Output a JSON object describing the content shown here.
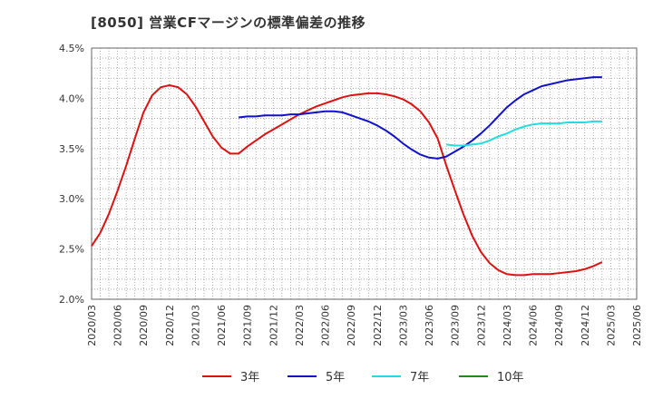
{
  "chart_data": {
    "type": "line",
    "title": "[8050]  営業CFマージンの標準偏差の推移",
    "xlabel": "",
    "ylabel": "",
    "ylim": [
      2.0,
      4.5
    ],
    "y_ticks": [
      "2.0%",
      "2.5%",
      "3.0%",
      "3.5%",
      "4.0%",
      "4.5%"
    ],
    "x_ticks": [
      "2020/03",
      "2020/06",
      "2020/09",
      "2020/12",
      "2021/03",
      "2021/06",
      "2021/09",
      "2021/12",
      "2022/03",
      "2022/06",
      "2022/09",
      "2022/12",
      "2023/03",
      "2023/06",
      "2023/09",
      "2023/12",
      "2024/03",
      "2024/06",
      "2024/09",
      "2024/12",
      "2025/03",
      "2025/06"
    ],
    "grid": true,
    "legend_position": "bottom",
    "series": [
      {
        "name": "3年",
        "color": "#dd1111",
        "points": [
          [
            "2020/03",
            2.53
          ],
          [
            "2020/04",
            2.66
          ],
          [
            "2020/05",
            2.85
          ],
          [
            "2020/06",
            3.08
          ],
          [
            "2020/07",
            3.33
          ],
          [
            "2020/08",
            3.6
          ],
          [
            "2020/09",
            3.86
          ],
          [
            "2020/10",
            4.03
          ],
          [
            "2020/11",
            4.11
          ],
          [
            "2020/12",
            4.13
          ],
          [
            "2021/01",
            4.11
          ],
          [
            "2021/02",
            4.04
          ],
          [
            "2021/03",
            3.92
          ],
          [
            "2021/04",
            3.77
          ],
          [
            "2021/05",
            3.62
          ],
          [
            "2021/06",
            3.51
          ],
          [
            "2021/07",
            3.45
          ],
          [
            "2021/08",
            3.45
          ],
          [
            "2021/09",
            3.52
          ],
          [
            "2021/10",
            3.58
          ],
          [
            "2021/11",
            3.64
          ],
          [
            "2021/12",
            3.69
          ],
          [
            "2022/01",
            3.74
          ],
          [
            "2022/02",
            3.79
          ],
          [
            "2022/03",
            3.84
          ],
          [
            "2022/04",
            3.88
          ],
          [
            "2022/05",
            3.92
          ],
          [
            "2022/06",
            3.95
          ],
          [
            "2022/07",
            3.98
          ],
          [
            "2022/08",
            4.01
          ],
          [
            "2022/09",
            4.03
          ],
          [
            "2022/10",
            4.04
          ],
          [
            "2022/11",
            4.05
          ],
          [
            "2022/12",
            4.05
          ],
          [
            "2023/01",
            4.04
          ],
          [
            "2023/02",
            4.02
          ],
          [
            "2023/03",
            3.99
          ],
          [
            "2023/04",
            3.94
          ],
          [
            "2023/05",
            3.87
          ],
          [
            "2023/06",
            3.76
          ],
          [
            "2023/07",
            3.6
          ],
          [
            "2023/08",
            3.33
          ],
          [
            "2023/09",
            3.08
          ],
          [
            "2023/10",
            2.84
          ],
          [
            "2023/11",
            2.63
          ],
          [
            "2023/12",
            2.47
          ],
          [
            "2024/01",
            2.36
          ],
          [
            "2024/02",
            2.29
          ],
          [
            "2024/03",
            2.25
          ],
          [
            "2024/04",
            2.24
          ],
          [
            "2024/05",
            2.24
          ],
          [
            "2024/06",
            2.25
          ],
          [
            "2024/07",
            2.25
          ],
          [
            "2024/08",
            2.25
          ],
          [
            "2024/09",
            2.26
          ],
          [
            "2024/10",
            2.27
          ],
          [
            "2024/11",
            2.28
          ],
          [
            "2024/12",
            2.3
          ],
          [
            "2025/01",
            2.33
          ],
          [
            "2025/02",
            2.37
          ]
        ]
      },
      {
        "name": "5年",
        "color": "#1111cc",
        "points": [
          [
            "2021/08",
            3.81
          ],
          [
            "2021/09",
            3.82
          ],
          [
            "2021/10",
            3.82
          ],
          [
            "2021/11",
            3.83
          ],
          [
            "2021/12",
            3.83
          ],
          [
            "2022/01",
            3.83
          ],
          [
            "2022/02",
            3.84
          ],
          [
            "2022/03",
            3.84
          ],
          [
            "2022/04",
            3.85
          ],
          [
            "2022/05",
            3.86
          ],
          [
            "2022/06",
            3.87
          ],
          [
            "2022/07",
            3.87
          ],
          [
            "2022/08",
            3.86
          ],
          [
            "2022/09",
            3.83
          ],
          [
            "2022/10",
            3.8
          ],
          [
            "2022/11",
            3.77
          ],
          [
            "2022/12",
            3.73
          ],
          [
            "2023/01",
            3.68
          ],
          [
            "2023/02",
            3.62
          ],
          [
            "2023/03",
            3.55
          ],
          [
            "2023/04",
            3.49
          ],
          [
            "2023/05",
            3.44
          ],
          [
            "2023/06",
            3.41
          ],
          [
            "2023/07",
            3.4
          ],
          [
            "2023/08",
            3.42
          ],
          [
            "2023/09",
            3.47
          ],
          [
            "2023/10",
            3.52
          ],
          [
            "2023/11",
            3.58
          ],
          [
            "2023/12",
            3.65
          ],
          [
            "2024/01",
            3.73
          ],
          [
            "2024/02",
            3.82
          ],
          [
            "2024/03",
            3.91
          ],
          [
            "2024/04",
            3.98
          ],
          [
            "2024/05",
            4.04
          ],
          [
            "2024/06",
            4.08
          ],
          [
            "2024/07",
            4.12
          ],
          [
            "2024/08",
            4.14
          ],
          [
            "2024/09",
            4.16
          ],
          [
            "2024/10",
            4.18
          ],
          [
            "2024/11",
            4.19
          ],
          [
            "2024/12",
            4.2
          ],
          [
            "2025/01",
            4.21
          ],
          [
            "2025/02",
            4.21
          ]
        ]
      },
      {
        "name": "7年",
        "color": "#22dddd",
        "points": [
          [
            "2023/08",
            3.54
          ],
          [
            "2023/09",
            3.53
          ],
          [
            "2023/10",
            3.53
          ],
          [
            "2023/11",
            3.54
          ],
          [
            "2023/12",
            3.55
          ],
          [
            "2024/01",
            3.58
          ],
          [
            "2024/02",
            3.62
          ],
          [
            "2024/03",
            3.65
          ],
          [
            "2024/04",
            3.69
          ],
          [
            "2024/05",
            3.72
          ],
          [
            "2024/06",
            3.74
          ],
          [
            "2024/07",
            3.75
          ],
          [
            "2024/08",
            3.75
          ],
          [
            "2024/09",
            3.75
          ],
          [
            "2024/10",
            3.76
          ],
          [
            "2024/11",
            3.76
          ],
          [
            "2024/12",
            3.76
          ],
          [
            "2025/01",
            3.77
          ],
          [
            "2025/02",
            3.77
          ]
        ]
      },
      {
        "name": "10年",
        "color": "#228822",
        "points": []
      }
    ]
  }
}
